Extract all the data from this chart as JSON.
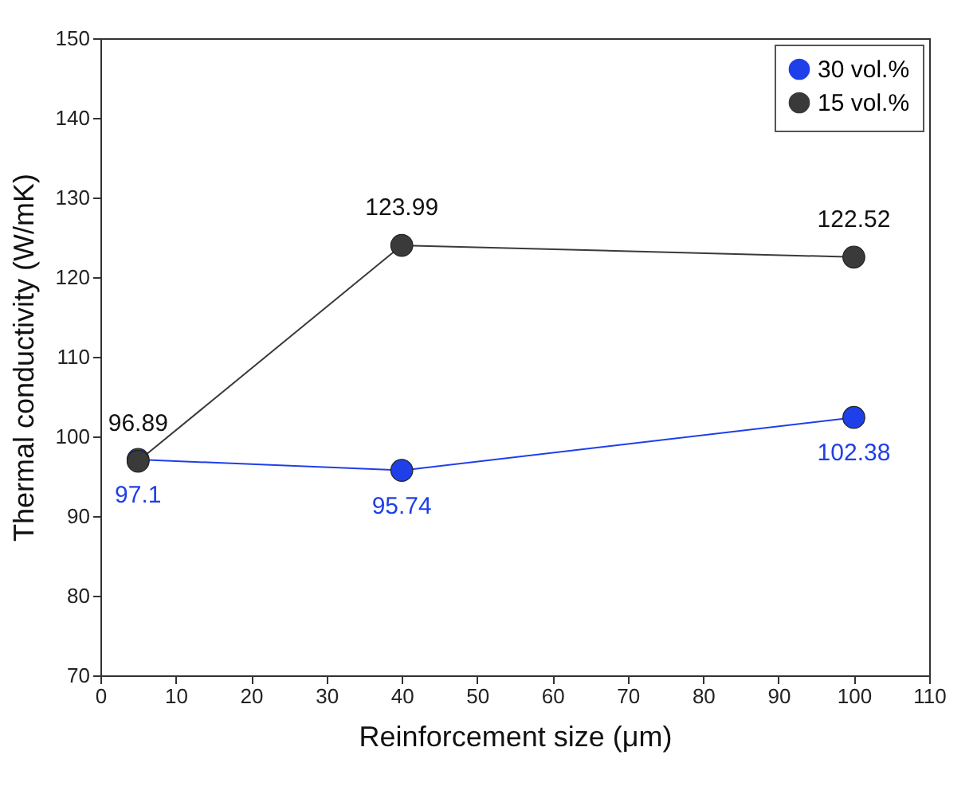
{
  "chart_data": {
    "type": "line",
    "xlabel": "Reinforcement size (μm)",
    "ylabel": "Thermal conductivity (W/mK)",
    "x": [
      5,
      40,
      100
    ],
    "series": [
      {
        "name": "30 vol.%",
        "color": "#1f3fe8",
        "values": [
          97.1,
          95.74,
          102.38
        ]
      },
      {
        "name": "15 vol.%",
        "color": "#3a3a3a",
        "values": [
          96.89,
          123.99,
          122.52
        ]
      }
    ],
    "xlim": [
      0,
      110
    ],
    "xticks": [
      0,
      10,
      20,
      30,
      40,
      50,
      60,
      70,
      80,
      90,
      100,
      110
    ],
    "ylim": [
      70,
      150
    ],
    "yticks": [
      70,
      80,
      90,
      100,
      110,
      120,
      130,
      140,
      150
    ],
    "grid": false,
    "legend": "top right",
    "marker": "circle",
    "line_style": "solid",
    "data_labels": true
  }
}
